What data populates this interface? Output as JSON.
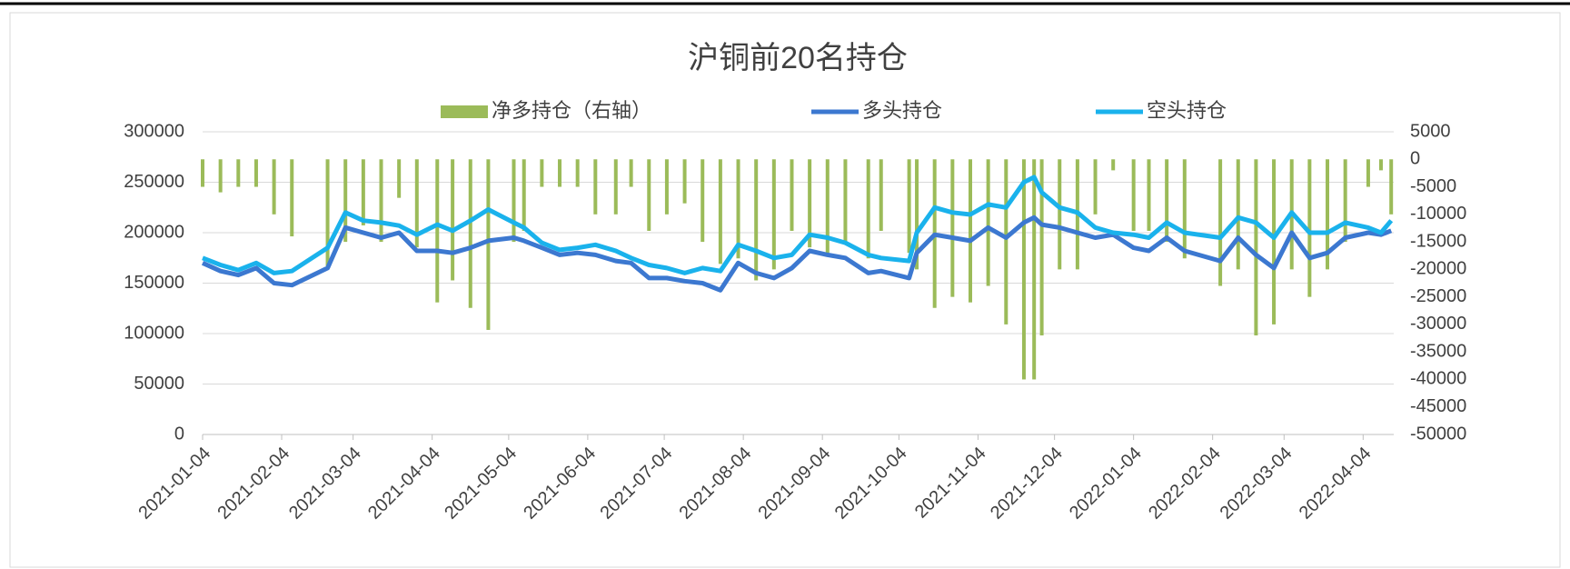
{
  "chart_data": {
    "type": "bar-line-combo",
    "title": "沪铜前20名持仓",
    "x": [
      "2021-01-04",
      "2021-01-11",
      "2021-01-18",
      "2021-01-25",
      "2021-02-01",
      "2021-02-08",
      "2021-02-22",
      "2021-03-01",
      "2021-03-08",
      "2021-03-15",
      "2021-03-22",
      "2021-03-29",
      "2021-04-06",
      "2021-04-12",
      "2021-04-19",
      "2021-04-26",
      "2021-05-06",
      "2021-05-10",
      "2021-05-17",
      "2021-05-24",
      "2021-05-31",
      "2021-06-07",
      "2021-06-15",
      "2021-06-21",
      "2021-06-28",
      "2021-07-05",
      "2021-07-12",
      "2021-07-19",
      "2021-07-26",
      "2021-08-02",
      "2021-08-09",
      "2021-08-16",
      "2021-08-23",
      "2021-08-30",
      "2021-09-06",
      "2021-09-13",
      "2021-09-22",
      "2021-09-27",
      "2021-10-08",
      "2021-10-11",
      "2021-10-18",
      "2021-10-25",
      "2021-11-01",
      "2021-11-08",
      "2021-11-15",
      "2021-11-22",
      "2021-11-26",
      "2021-11-29",
      "2021-12-06",
      "2021-12-13",
      "2021-12-20",
      "2021-12-27",
      "2022-01-04",
      "2022-01-10",
      "2022-01-17",
      "2022-01-24",
      "2022-02-07",
      "2022-02-14",
      "2022-02-21",
      "2022-02-28",
      "2022-03-07",
      "2022-03-14",
      "2022-03-21",
      "2022-03-28",
      "2022-04-06",
      "2022-04-11",
      "2022-04-15"
    ],
    "xlim": [
      "2021-01-04",
      "2022-04-16"
    ],
    "xticks": [
      "2021-01-04",
      "2021-02-04",
      "2021-03-04",
      "2021-04-04",
      "2021-05-04",
      "2021-06-04",
      "2021-07-04",
      "2021-08-04",
      "2021-09-04",
      "2021-10-04",
      "2021-11-04",
      "2021-12-04",
      "2022-01-04",
      "2022-02-04",
      "2022-03-04",
      "2022-04-04"
    ],
    "ylim": [
      0,
      300000
    ],
    "yticks": [
      0,
      50000,
      100000,
      150000,
      200000,
      250000,
      300000
    ],
    "y2lim": [
      -50000,
      5000
    ],
    "y2ticks": [
      -50000,
      -45000,
      -40000,
      -35000,
      -30000,
      -25000,
      -20000,
      -15000,
      -10000,
      -5000,
      0,
      5000
    ],
    "grid": true,
    "series": [
      {
        "name": "净多持仓（右轴）",
        "type": "bar",
        "axis": "y2",
        "color": "#9bbb59",
        "values": [
          -5000,
          -6000,
          -5000,
          -5000,
          -10000,
          -14000,
          -20000,
          -15000,
          -12000,
          -15000,
          -7000,
          -16000,
          -26000,
          -22000,
          -27000,
          -31000,
          -15000,
          -13000,
          -5000,
          -5000,
          -5000,
          -10000,
          -10000,
          -5000,
          -13000,
          -10000,
          -8000,
          -15000,
          -19000,
          -18000,
          -22000,
          -20000,
          -13000,
          -16000,
          -17000,
          -15000,
          -18000,
          -13000,
          -17000,
          -20000,
          -27000,
          -25000,
          -26000,
          -23000,
          -30000,
          -40000,
          -40000,
          -32000,
          -20000,
          -20000,
          -10000,
          -2000,
          -13000,
          -13000,
          -15000,
          -18000,
          -23000,
          -20000,
          -32000,
          -30000,
          -20000,
          -25000,
          -20000,
          -15000,
          -5000,
          -2000,
          -10000
        ]
      },
      {
        "name": "多头持仓",
        "type": "line",
        "axis": "y",
        "color": "#3c78d0",
        "values": [
          170000,
          162000,
          158000,
          165000,
          150000,
          148000,
          165000,
          205000,
          200000,
          195000,
          200000,
          182000,
          182000,
          180000,
          185000,
          192000,
          195000,
          192000,
          185000,
          178000,
          180000,
          178000,
          172000,
          170000,
          155000,
          155000,
          152000,
          150000,
          143000,
          170000,
          160000,
          155000,
          165000,
          182000,
          178000,
          175000,
          160000,
          162000,
          155000,
          180000,
          198000,
          195000,
          192000,
          205000,
          195000,
          210000,
          215000,
          208000,
          205000,
          200000,
          195000,
          198000,
          185000,
          182000,
          195000,
          182000,
          172000,
          195000,
          178000,
          165000,
          200000,
          175000,
          180000,
          195000,
          200000,
          198000,
          202000
        ]
      },
      {
        "name": "空头持仓",
        "type": "line",
        "axis": "y",
        "color": "#1ab2ec",
        "values": [
          175000,
          168000,
          163000,
          170000,
          160000,
          162000,
          185000,
          220000,
          212000,
          210000,
          207000,
          198000,
          208000,
          202000,
          212000,
          223000,
          210000,
          205000,
          190000,
          183000,
          185000,
          188000,
          182000,
          175000,
          168000,
          165000,
          160000,
          165000,
          162000,
          188000,
          182000,
          175000,
          178000,
          198000,
          195000,
          190000,
          178000,
          175000,
          172000,
          200000,
          225000,
          220000,
          218000,
          228000,
          225000,
          250000,
          255000,
          240000,
          225000,
          220000,
          205000,
          200000,
          198000,
          195000,
          210000,
          200000,
          195000,
          215000,
          210000,
          195000,
          220000,
          200000,
          200000,
          210000,
          205000,
          200000,
          212000
        ]
      }
    ]
  }
}
